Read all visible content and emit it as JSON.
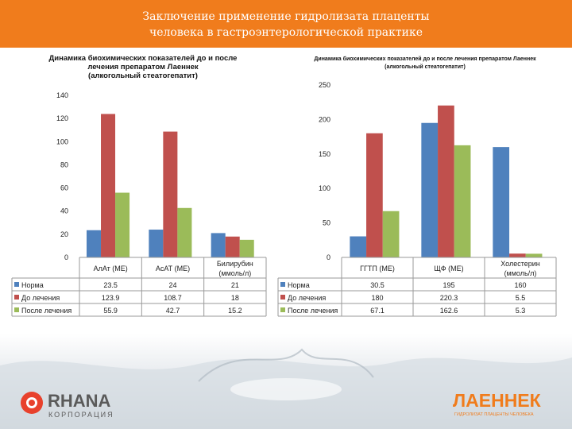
{
  "slide": {
    "title_line1": "Заключение применение гидролизата плаценты",
    "title_line2": "человека в гастроэнтерологической практике"
  },
  "colors": {
    "header": "#f07c1c",
    "norma": "#4f81bd",
    "before": "#c0504d",
    "after": "#9bbb59"
  },
  "chart_data": [
    {
      "type": "bar",
      "title_line1": "Динамика биохимических показателей до и после",
      "title_line2": "лечения препаратом Лаеннек",
      "title_line3": "(алкогольный стеатогепатит)",
      "categories": [
        "АлАт (МЕ)",
        "АсАТ (МЕ)",
        "Билирубин (ммоль/л)"
      ],
      "series": [
        {
          "name": "Норма",
          "values": [
            23.5,
            24,
            21
          ]
        },
        {
          "name": "До лечения",
          "values": [
            123.9,
            108.7,
            18
          ]
        },
        {
          "name": "После лечения",
          "values": [
            55.9,
            42.7,
            15.2
          ]
        }
      ],
      "table_values": [
        [
          "23.5",
          "24",
          "21"
        ],
        [
          "123.9",
          "108.7",
          "18"
        ],
        [
          "55.9",
          "42.7",
          "15.2"
        ]
      ],
      "yticks": [
        "0",
        "20",
        "40",
        "60",
        "80",
        "100",
        "120",
        "140"
      ],
      "ylim": [
        0,
        140
      ],
      "grid": false,
      "legend": "data table"
    },
    {
      "type": "bar",
      "title_line1": "Динамика биохимических показателей до и после лечения препаратом Лаеннек",
      "title_line2": "(алкогольный стеатогепатит)",
      "categories": [
        "ГГТП (МЕ)",
        "ЩФ (МЕ)",
        "Холестерин (ммоль/л)"
      ],
      "series": [
        {
          "name": "Норма",
          "values": [
            30.5,
            195,
            160
          ]
        },
        {
          "name": "До лечения",
          "values": [
            180,
            220.3,
            5.5
          ]
        },
        {
          "name": "После лечения",
          "values": [
            67.1,
            162.6,
            5.3
          ]
        }
      ],
      "table_values": [
        [
          "30.5",
          "195",
          "160"
        ],
        [
          "180",
          "220.3",
          "5.5"
        ],
        [
          "67.1",
          "162.6",
          "5.3"
        ]
      ],
      "yticks": [
        "0",
        "50",
        "100",
        "150",
        "200",
        "250"
      ],
      "ylim": [
        0,
        250
      ],
      "grid": false,
      "legend": "data table"
    }
  ],
  "logos": {
    "left_name": "RHANA",
    "left_sub": "КОРПОРАЦИЯ",
    "right_name": "ЛАЕННЕК",
    "right_sub": "ГИДРОЛИЗАТ ПЛАЦЕНТЫ ЧЕЛОВЕКА"
  }
}
